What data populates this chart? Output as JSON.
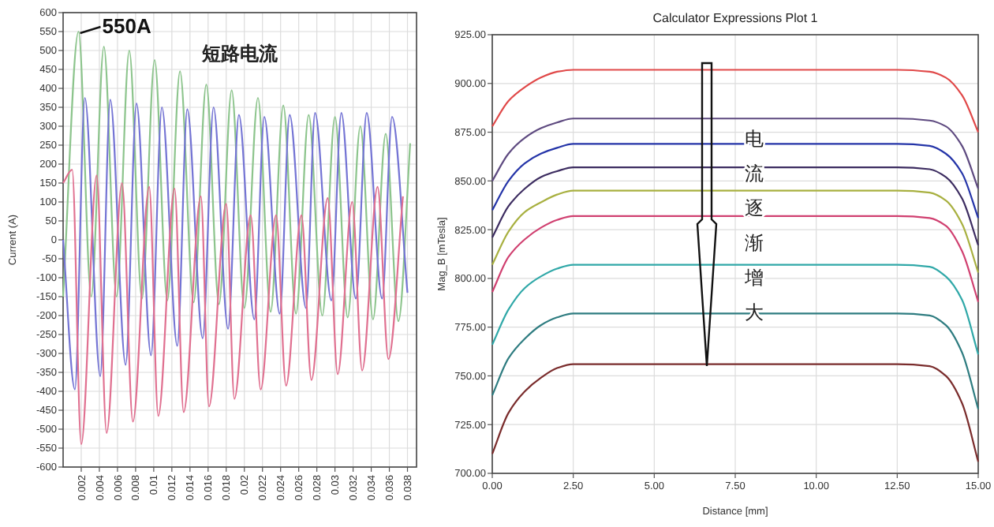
{
  "chart_data": [
    {
      "type": "line",
      "ylabel": "Current (A)",
      "xlim": [
        0,
        0.039
      ],
      "ylim": [
        -600,
        600
      ],
      "xticks": [
        0.002,
        0.004,
        0.006,
        0.008,
        0.01,
        0.012,
        0.014,
        0.016,
        0.018,
        0.02,
        0.022,
        0.024,
        0.026,
        0.028,
        0.03,
        0.032,
        0.034,
        0.036,
        0.038
      ],
      "yticks": [
        -600,
        -550,
        -500,
        -450,
        -400,
        -350,
        -300,
        -250,
        -200,
        -150,
        -100,
        -50,
        0,
        50,
        100,
        150,
        200,
        250,
        300,
        350,
        400,
        450,
        500,
        550,
        600
      ],
      "grid": true,
      "annotations": [
        {
          "text": "550A",
          "x": 0.0017,
          "y": 550
        },
        "短路电流"
      ],
      "series": [
        {
          "color": "#8cc48c",
          "x": [
            0,
            0.0017,
            0.0031,
            0.0045,
            0.0059,
            0.0073,
            0.0087,
            0.0101,
            0.0115,
            0.0129,
            0.0144,
            0.0158,
            0.0172,
            0.0186,
            0.02,
            0.0215,
            0.0229,
            0.0243,
            0.0257,
            0.0271,
            0.0286,
            0.03,
            0.0314,
            0.0328,
            0.0342,
            0.0356,
            0.037,
            0.0383
          ],
          "values": [
            -150,
            550,
            -150,
            510,
            -150,
            500,
            -155,
            475,
            -160,
            445,
            -165,
            410,
            -170,
            395,
            -180,
            375,
            -190,
            355,
            -195,
            330,
            -200,
            325,
            -205,
            300,
            -210,
            280,
            -215,
            255
          ]
        },
        {
          "color": "#7474d4",
          "x": [
            0,
            0.0013,
            0.0024,
            0.0041,
            0.0052,
            0.0069,
            0.0081,
            0.0097,
            0.0109,
            0.0126,
            0.0137,
            0.0154,
            0.0166,
            0.0182,
            0.0194,
            0.0211,
            0.0222,
            0.0239,
            0.025,
            0.0268,
            0.0278,
            0.0296,
            0.0307,
            0.0323,
            0.0335,
            0.0352,
            0.0363,
            0.038
          ],
          "values": [
            0,
            -395,
            375,
            -360,
            370,
            -330,
            360,
            -305,
            350,
            -280,
            345,
            -260,
            350,
            -235,
            330,
            -210,
            325,
            -195,
            330,
            -180,
            335,
            -160,
            335,
            -155,
            335,
            -155,
            325,
            -140
          ]
        },
        {
          "color": "#e07090",
          "x": [
            0,
            0.001,
            0.002,
            0.0037,
            0.0048,
            0.0065,
            0.0077,
            0.0095,
            0.0105,
            0.0123,
            0.0133,
            0.0152,
            0.0161,
            0.018,
            0.0189,
            0.0207,
            0.0218,
            0.0235,
            0.0246,
            0.0263,
            0.0274,
            0.0292,
            0.0303,
            0.0319,
            0.033,
            0.0347,
            0.0359,
            0.0375
          ],
          "values": [
            150,
            185,
            -540,
            170,
            -510,
            150,
            -480,
            140,
            -465,
            135,
            -455,
            115,
            -440,
            95,
            -420,
            65,
            -395,
            65,
            -385,
            65,
            -370,
            110,
            -355,
            100,
            -345,
            140,
            -315,
            115
          ]
        }
      ]
    },
    {
      "type": "line",
      "title": "Calculator Expressions Plot 1",
      "xlabel": "Distance [mm]",
      "ylabel": "Mag_B [mTesla]",
      "xlim": [
        0,
        15
      ],
      "ylim": [
        700,
        925
      ],
      "xticks": [
        {
          "value": 0,
          "label": "0.00"
        },
        {
          "value": 2.5,
          "label": "2.50"
        },
        {
          "value": 5,
          "label": "5.00"
        },
        {
          "value": 7.5,
          "label": "7.50"
        },
        {
          "value": 10,
          "label": "10.00"
        },
        {
          "value": 12.5,
          "label": "12.50"
        },
        {
          "value": 15,
          "label": "15.00"
        }
      ],
      "yticks": [
        {
          "value": 700,
          "label": "700.00"
        },
        {
          "value": 725,
          "label": "725.00"
        },
        {
          "value": 750,
          "label": "750.00"
        },
        {
          "value": 775,
          "label": "775.00"
        },
        {
          "value": 800,
          "label": "800.00"
        },
        {
          "value": 825,
          "label": "825.00"
        },
        {
          "value": 850,
          "label": "850.00"
        },
        {
          "value": 875,
          "label": "875.00"
        },
        {
          "value": 900,
          "label": "900.00"
        },
        {
          "value": 925,
          "label": "925.00"
        }
      ],
      "grid": true,
      "annotations": [
        "电流逐渐增大"
      ],
      "x": [
        0,
        0.5,
        1,
        1.5,
        2,
        2.5,
        5,
        7.5,
        10,
        12.5,
        13.5,
        14,
        14.5,
        15
      ],
      "series": [
        {
          "color": "#e04848",
          "values": [
            878,
            891,
            898,
            903,
            906,
            907,
            907,
            907,
            907,
            907,
            906,
            903,
            894,
            875
          ]
        },
        {
          "color": "#5e4a80",
          "values": [
            850,
            864,
            872,
            877,
            880,
            882,
            882,
            882,
            882,
            882,
            881,
            878,
            868,
            846
          ]
        },
        {
          "color": "#2434a8",
          "values": [
            835,
            850,
            859,
            864,
            867,
            869,
            869,
            869,
            869,
            869,
            868,
            864,
            854,
            831
          ]
        },
        {
          "color": "#3c2c60",
          "values": [
            821,
            837,
            846,
            852,
            855,
            857,
            857,
            857,
            857,
            857,
            856,
            852,
            841,
            817
          ]
        },
        {
          "color": "#a8b040",
          "values": [
            807,
            824,
            834,
            839,
            843,
            845,
            845,
            845,
            845,
            845,
            844,
            840,
            828,
            803
          ]
        },
        {
          "color": "#d04070",
          "values": [
            793,
            811,
            820,
            826,
            830,
            832,
            832,
            832,
            832,
            832,
            831,
            827,
            814,
            788
          ]
        },
        {
          "color": "#30a8a8",
          "values": [
            766,
            784,
            795,
            801,
            805,
            807,
            807,
            807,
            807,
            807,
            806,
            801,
            789,
            761
          ]
        },
        {
          "color": "#2e7c80",
          "values": [
            740,
            759,
            769,
            776,
            780,
            782,
            782,
            782,
            782,
            782,
            781,
            776,
            762,
            733
          ]
        },
        {
          "color": "#7a2c2c",
          "values": [
            710,
            731,
            742,
            749,
            754,
            756,
            756,
            756,
            756,
            756,
            755,
            750,
            736,
            706
          ]
        }
      ]
    }
  ]
}
